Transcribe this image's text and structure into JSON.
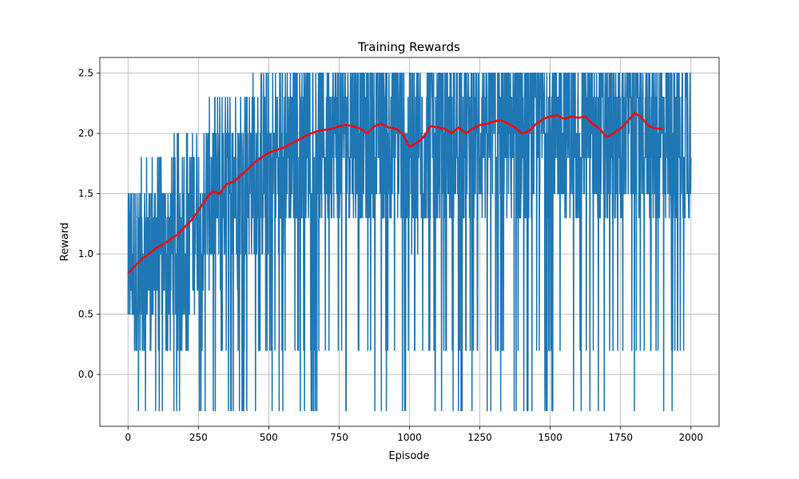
{
  "chart_data": {
    "type": "line",
    "title": "Training Rewards",
    "xlabel": "Episode",
    "ylabel": "Reward",
    "xlim": [
      -100,
      2100
    ],
    "ylim": [
      -0.43,
      2.63
    ],
    "xticks": [
      0,
      250,
      500,
      750,
      1000,
      1250,
      1500,
      1750,
      2000
    ],
    "xtick_labels": [
      "0",
      "250",
      "500",
      "750",
      "1000",
      "1250",
      "1500",
      "1750",
      "2000"
    ],
    "yticks": [
      0.0,
      0.5,
      1.0,
      1.5,
      2.0,
      2.5
    ],
    "ytick_labels": [
      "0.0",
      "0.5",
      "1.0",
      "1.5",
      "2.0",
      "2.5"
    ],
    "grid": true,
    "series": [
      {
        "color": "#1f77b4",
        "style": "line",
        "description_values": "per-episode reward, 0 to 2000",
        "x_range": [
          0,
          2000
        ],
        "discrete_levels": [
          -0.3,
          0.2,
          0.5,
          0.7,
          1.0,
          1.3,
          1.5,
          1.8,
          2.0,
          2.3,
          2.5
        ]
      },
      {
        "color": "#ff0000",
        "style": "line",
        "x": [
          0,
          25,
          50,
          75,
          100,
          125,
          150,
          175,
          200,
          225,
          250,
          275,
          300,
          325,
          350,
          375,
          400,
          425,
          450,
          475,
          500,
          525,
          550,
          575,
          600,
          625,
          650,
          675,
          700,
          725,
          750,
          775,
          800,
          825,
          850,
          875,
          900,
          925,
          950,
          975,
          1000,
          1025,
          1050,
          1075,
          1100,
          1125,
          1150,
          1175,
          1200,
          1225,
          1250,
          1275,
          1300,
          1325,
          1350,
          1375,
          1400,
          1425,
          1450,
          1475,
          1500,
          1525,
          1550,
          1575,
          1600,
          1625,
          1650,
          1675,
          1700,
          1725,
          1750,
          1775,
          1800,
          1825,
          1850,
          1875,
          1900
        ],
        "y": [
          0.84,
          0.9,
          0.96,
          1.0,
          1.05,
          1.08,
          1.12,
          1.16,
          1.22,
          1.28,
          1.36,
          1.45,
          1.52,
          1.5,
          1.58,
          1.6,
          1.65,
          1.7,
          1.76,
          1.8,
          1.84,
          1.86,
          1.88,
          1.91,
          1.94,
          1.97,
          2.0,
          2.02,
          2.03,
          2.04,
          2.06,
          2.07,
          2.06,
          2.04,
          2.0,
          2.06,
          2.08,
          2.05,
          2.04,
          2.0,
          1.89,
          1.92,
          1.97,
          2.06,
          2.05,
          2.04,
          2.0,
          2.05,
          2.0,
          2.04,
          2.07,
          2.08,
          2.1,
          2.11,
          2.08,
          2.05,
          2.0,
          2.02,
          2.08,
          2.12,
          2.14,
          2.15,
          2.12,
          2.14,
          2.13,
          2.14,
          2.08,
          2.04,
          1.97,
          2.0,
          2.04,
          2.1,
          2.17,
          2.13,
          2.06,
          2.04,
          2.04
        ]
      }
    ]
  }
}
